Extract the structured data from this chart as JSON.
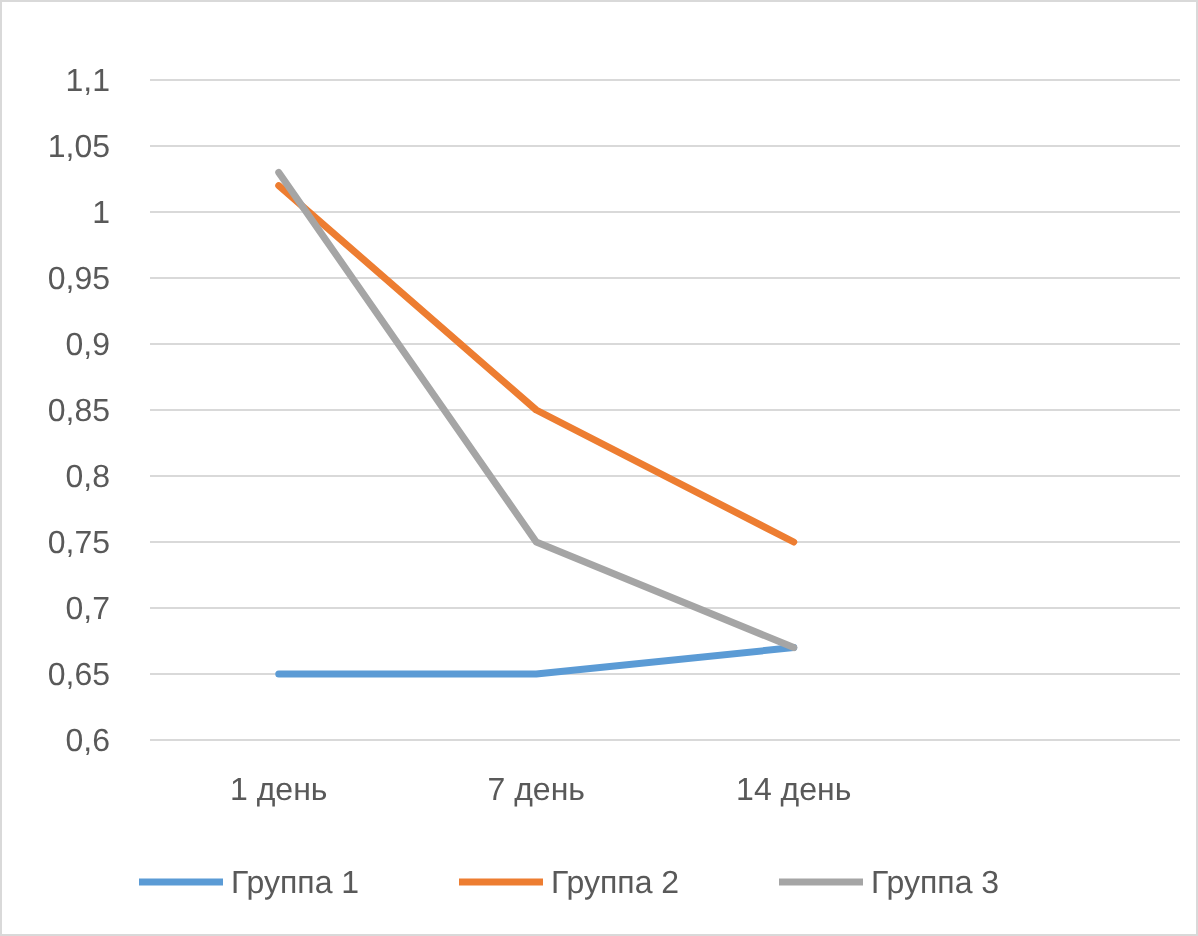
{
  "chart_data": {
    "type": "line",
    "categories": [
      "1 день",
      "7 день",
      "14 день",
      null
    ],
    "series": [
      {
        "name": "Группа 1",
        "color": "#5b9bd5",
        "values": [
          0.65,
          0.65,
          0.67,
          null
        ]
      },
      {
        "name": "Группа 2",
        "color": "#ed7d31",
        "values": [
          1.02,
          0.85,
          0.75,
          null
        ]
      },
      {
        "name": "Группа 3",
        "color": "#a5a5a5",
        "values": [
          1.03,
          0.75,
          0.67,
          null
        ]
      }
    ],
    "ylim": [
      0.6,
      1.1
    ],
    "yticks": [
      {
        "value": 0.6,
        "label": "0,6"
      },
      {
        "value": 0.65,
        "label": "0,65"
      },
      {
        "value": 0.7,
        "label": "0,7"
      },
      {
        "value": 0.75,
        "label": "0,75"
      },
      {
        "value": 0.8,
        "label": "0,8"
      },
      {
        "value": 0.85,
        "label": "0,85"
      },
      {
        "value": 0.9,
        "label": "0,9"
      },
      {
        "value": 0.95,
        "label": "0,95"
      },
      {
        "value": 1,
        "label": "1"
      },
      {
        "value": 1.05,
        "label": "1,05"
      },
      {
        "value": 1.1,
        "label": "1,1"
      }
    ],
    "grid": "y",
    "legend": "bottom",
    "marker": "none",
    "line_style": "solid"
  }
}
